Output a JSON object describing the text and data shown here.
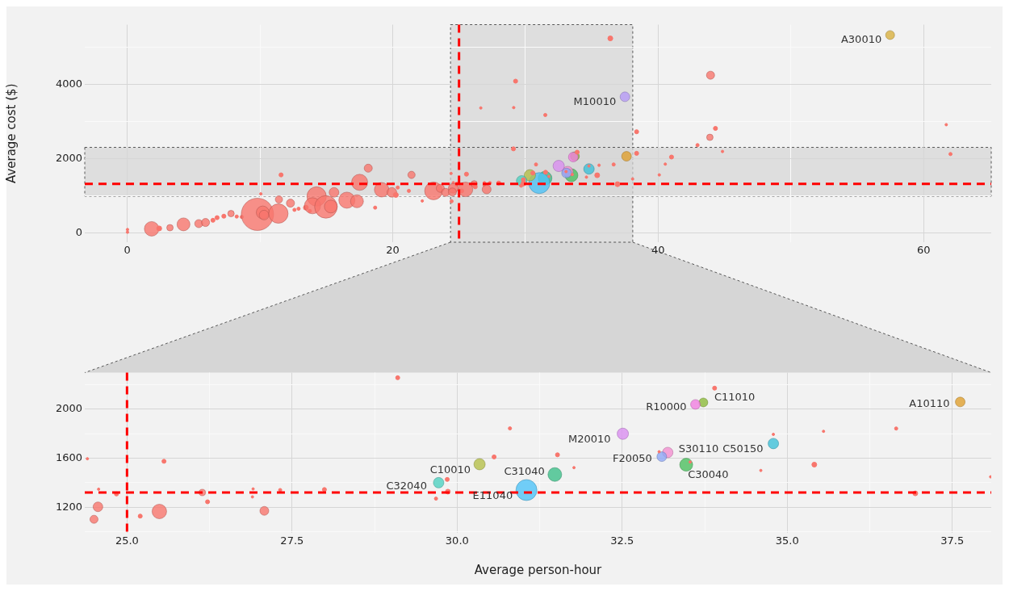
{
  "chart_data": [
    {
      "type": "bubble",
      "ylabel": "Average cost ($)",
      "xlim": [
        -3.2,
        65.1
      ],
      "ylim": [
        -250,
        5600
      ],
      "xticks": [
        0,
        {
          "value": 10,
          "label": null
        },
        20,
        {
          "value": 30,
          "label": null
        },
        40,
        {
          "value": 50,
          "label": null
        },
        60
      ],
      "yticks": [
        0,
        {
          "value": 1000,
          "label": null
        },
        2000,
        {
          "value": 3000,
          "label": null
        },
        4000,
        {
          "value": 5000,
          "label": null
        }
      ],
      "grid": true,
      "legend": false,
      "bands": [
        {
          "axis": "x",
          "from": 24.36,
          "to": 38.09,
          "color": "#d6d6d6"
        },
        {
          "axis": "y",
          "from": 987,
          "to": 2300,
          "color": "#d6d6d6"
        }
      ],
      "ref_lines": [
        {
          "axis": "x",
          "value": 25,
          "color": "#ff0000",
          "line_style": "dashed"
        },
        {
          "axis": "y",
          "value": 1320,
          "color": "#ff0000",
          "line_style": "dashed"
        }
      ],
      "series": [
        {
          "color": "#f8766d",
          "x": [
            0.02,
            0.02,
            1.84,
            2.41,
            3.22,
            4.24,
            5.39,
            5.9,
            6.46,
            6.77,
            7.28,
            7.82,
            8.25,
            8.63,
            9.81,
            10.21,
            10.31,
            11.43,
            11.39,
            11.59,
            10.07,
            12.3,
            12.6,
            12.91,
            13.46,
            13.76,
            14.27,
            13.96,
            14.97,
            15.34,
            15.58,
            16.55,
            17.31,
            17.51,
            18.16,
            18.68,
            19.17,
            19.94,
            20.24,
            20.38,
            21.22,
            21.42,
            22.23,
            23.08,
            23.59,
            23.99,
            24.44,
            29.1,
            30.8,
            30.56,
            29.85,
            29.86,
            29.68,
            24.4,
            25.56,
            24.57,
            24.84,
            24.56,
            24.5,
            25.2,
            25.49,
            26.14,
            26.22,
            26.91,
            26.9,
            27.32,
            27.08,
            27.99,
            33.9,
            31.52,
            31.77,
            33.06,
            33.53,
            34.79,
            34.6,
            35.55,
            35.41,
            36.65,
            36.94,
            38.08,
            36.4,
            29.26,
            26.64,
            29.12,
            31.5,
            38.38,
            38.38,
            40.09,
            40.54,
            41.01,
            42.97,
            43.9,
            44.32,
            44.85,
            43.95,
            61.71,
            62.03
          ],
          "values": [
            90,
            20,
            110,
            120,
            140,
            230,
            250,
            280,
            340,
            410,
            450,
            520,
            440,
            430,
            500,
            550,
            480,
            900,
            520,
            1560,
            1050,
            800,
            620,
            650,
            680,
            590,
            980,
            730,
            700,
            710,
            1090,
            880,
            850,
            1360,
            1740,
            680,
            1160,
            1090,
            1020,
            1220,
            1130,
            1560,
            860,
            1130,
            1200,
            1090,
            850,
            2260,
            1840,
            1610,
            1430,
            1330,
            1270,
            1600,
            1580,
            1350,
            1310,
            1200,
            1100,
            1130,
            1170,
            1320,
            1240,
            1350,
            1280,
            1340,
            1170,
            1340,
            2170,
            1630,
            1520,
            1650,
            1570,
            1800,
            1500,
            1820,
            1550,
            1840,
            1310,
            1450,
            5230,
            4080,
            3360,
            3370,
            3170,
            2720,
            2140,
            1560,
            1850,
            2040,
            2360,
            2570,
            2810,
            2190,
            4240,
            2910,
            2120
          ],
          "sizes": [
            0.006,
            0.006,
            0.203,
            0.023,
            0.04,
            0.16,
            0.063,
            0.063,
            0.016,
            0.016,
            0.016,
            0.04,
            0.01,
            0.01,
            1,
            0.16,
            0.09,
            0.051,
            0.36,
            0.016,
            0.006,
            0.063,
            0.01,
            0.01,
            0.023,
            0.01,
            0.36,
            0.25,
            0.49,
            0.16,
            0.09,
            0.25,
            0.16,
            0.25,
            0.063,
            0.01,
            0.203,
            0.09,
            0.023,
            0.01,
            0.01,
            0.051,
            0.006,
            0.303,
            0.063,
            0.063,
            0.01,
            0.016,
            0.01,
            0.016,
            0.016,
            0.023,
            0.01,
            0.006,
            0.016,
            0.006,
            0.016,
            0.09,
            0.063,
            0.016,
            0.203,
            0.04,
            0.016,
            0.006,
            0.006,
            0.01,
            0.076,
            0.016,
            0.016,
            0.016,
            0.006,
            0.006,
            0.006,
            0.006,
            0.006,
            0.006,
            0.023,
            0.01,
            0.023,
            0.006,
            0.023,
            0.016,
            0.006,
            0.006,
            0.01,
            0.016,
            0.016,
            0.006,
            0.006,
            0.016,
            0.01,
            0.04,
            0.016,
            0.006,
            0.063,
            0.006,
            0.01
          ]
        },
        {
          "name": "M10010",
          "color": "#b59af5",
          "x": [
            37.5
          ],
          "values": [
            3660
          ],
          "sizes": [
            0.09
          ]
        },
        {
          "name": "A30010",
          "color": "#d8b040",
          "x": [
            57.48
          ],
          "values": [
            5320
          ],
          "sizes": [
            0.076
          ]
        },
        {
          "color": "#4fd1c0",
          "x": [
            29.72
          ],
          "values": [
            1400
          ],
          "sizes": [
            0.106
          ]
        },
        {
          "color": "#b5bf4a",
          "x": [
            30.34
          ],
          "values": [
            1550
          ],
          "sizes": [
            0.123
          ]
        },
        {
          "color": "#4fc3f7",
          "x": [
            31.05
          ],
          "values": [
            1340
          ],
          "sizes": [
            0.423
          ]
        },
        {
          "color": "#3dbf8a",
          "x": [
            31.48
          ],
          "values": [
            1470
          ],
          "sizes": [
            0.181
          ]
        },
        {
          "color": "#d98ef0",
          "x": [
            32.51
          ],
          "values": [
            1800
          ],
          "sizes": [
            0.123
          ]
        },
        {
          "color": "#8fa8f5",
          "x": [
            33.1
          ],
          "values": [
            1610
          ],
          "sizes": [
            0.09
          ]
        },
        {
          "color": "#f28fd0",
          "x": [
            33.19
          ],
          "values": [
            1650
          ],
          "sizes": [
            0.106
          ]
        },
        {
          "color": "#4cbf5f",
          "x": [
            33.47
          ],
          "values": [
            1550
          ],
          "sizes": [
            0.16
          ]
        },
        {
          "color": "#f07ee0",
          "x": [
            33.61
          ],
          "values": [
            2040
          ],
          "sizes": [
            0.09
          ]
        },
        {
          "color": "#8cba3a",
          "x": [
            33.73
          ],
          "values": [
            2060
          ],
          "sizes": [
            0.076
          ]
        },
        {
          "color": "#3fc0d8",
          "x": [
            34.79
          ],
          "values": [
            1720
          ],
          "sizes": [
            0.106
          ]
        },
        {
          "color": "#e0a030",
          "x": [
            37.62
          ],
          "values": [
            2060
          ],
          "sizes": [
            0.09
          ]
        }
      ]
    },
    {
      "type": "bubble",
      "xlabel": "Average person-hour",
      "xlim": [
        24.36,
        38.09
      ],
      "ylim": [
        990,
        2300
      ],
      "xticks": [
        {
          "value": 25,
          "label": "25.0"
        },
        {
          "value": 26.25,
          "label": null
        },
        {
          "value": 27.5,
          "label": "27.5"
        },
        {
          "value": 28.75,
          "label": null
        },
        {
          "value": 30,
          "label": "30.0"
        },
        {
          "value": 31.25,
          "label": null
        },
        {
          "value": 32.5,
          "label": "32.5"
        },
        {
          "value": 33.75,
          "label": null
        },
        {
          "value": 35,
          "label": "35.0"
        },
        {
          "value": 36.25,
          "label": null
        },
        {
          "value": 37.5,
          "label": "37.5"
        }
      ],
      "yticks": [
        {
          "value": 1000,
          "label": null
        },
        1200,
        {
          "value": 1400,
          "label": null
        },
        1600,
        {
          "value": 1800,
          "label": null
        },
        2000,
        {
          "value": 2200,
          "label": null
        }
      ],
      "grid": true,
      "legend": false,
      "ref_lines": [
        {
          "axis": "x",
          "value": 25,
          "color": "#ff0000",
          "line_style": "dashed"
        },
        {
          "axis": "y",
          "value": 1320,
          "color": "#ff0000",
          "line_style": "dashed"
        }
      ],
      "series": [
        {
          "color": "#f8766d",
          "x": [
            29.1,
            30.8,
            30.56,
            29.85,
            29.86,
            29.68,
            24.4,
            25.56,
            24.57,
            24.84,
            24.56,
            24.5,
            25.2,
            25.49,
            26.14,
            26.22,
            26.91,
            26.9,
            27.32,
            27.08,
            27.99,
            33.9,
            31.52,
            31.77,
            33.06,
            33.53,
            34.79,
            34.6,
            35.55,
            35.41,
            36.65,
            36.94,
            38.08
          ],
          "values": [
            2258,
            1844,
            1611,
            1427,
            1327,
            1270,
            1596,
            1575,
            1347,
            1308,
            1203,
            1101,
            1127,
            1165,
            1320,
            1244,
            1349,
            1284,
            1340,
            1170,
            1344,
            2173,
            1628,
            1523,
            1653,
            1569,
            1795,
            1500,
            1820,
            1548,
            1843,
            1313,
            1448
          ],
          "sizes": [
            0.037,
            0.024,
            0.037,
            0.037,
            0.053,
            0.024,
            0.013,
            0.037,
            0.013,
            0.037,
            0.213,
            0.148,
            0.037,
            0.479,
            0.095,
            0.037,
            0.013,
            0.013,
            0.024,
            0.179,
            0.037,
            0.037,
            0.037,
            0.013,
            0.013,
            0.013,
            0.013,
            0.013,
            0.013,
            0.053,
            0.024,
            0.053,
            0.013
          ]
        },
        {
          "name": "C32040",
          "color": "#4fd1c0",
          "x": [
            29.72
          ],
          "values": [
            1400
          ],
          "sizes": [
            0.25
          ]
        },
        {
          "name": "C10010",
          "color": "#b5bf4a",
          "x": [
            30.34
          ],
          "values": [
            1551
          ],
          "sizes": [
            0.29
          ]
        },
        {
          "name": "E11040",
          "color": "#4fc3f7",
          "x": [
            31.05
          ],
          "values": [
            1340
          ],
          "sizes": [
            1
          ]
        },
        {
          "name": "C31040",
          "color": "#3dbf8a",
          "x": [
            31.48
          ],
          "values": [
            1467
          ],
          "sizes": [
            0.428
          ]
        },
        {
          "name": "M20010",
          "color": "#d98ef0",
          "x": [
            32.51
          ],
          "values": [
            1800
          ],
          "sizes": [
            0.29
          ]
        },
        {
          "name": "F20050",
          "color": "#8fa8f5",
          "x": [
            33.1
          ],
          "values": [
            1613
          ],
          "sizes": [
            0.213
          ]
        },
        {
          "name": "S30110",
          "color": "#f28fd0",
          "x": [
            33.19
          ],
          "values": [
            1647
          ],
          "sizes": [
            0.25
          ]
        },
        {
          "name": "C30040",
          "color": "#4cbf5f",
          "x": [
            33.47
          ],
          "values": [
            1547
          ],
          "sizes": [
            0.379
          ]
        },
        {
          "name": "R10000",
          "color": "#f07ee0",
          "x": [
            33.61
          ],
          "values": [
            2040
          ],
          "sizes": [
            0.213
          ]
        },
        {
          "name": "C11010",
          "color": "#8cba3a",
          "x": [
            33.73
          ],
          "values": [
            2056
          ],
          "sizes": [
            0.179
          ]
        },
        {
          "name": "C50150",
          "color": "#3fc0d8",
          "x": [
            34.79
          ],
          "values": [
            1720
          ],
          "sizes": [
            0.25
          ]
        },
        {
          "name": "A10110",
          "color": "#e0a030",
          "x": [
            37.62
          ],
          "values": [
            2060
          ],
          "sizes": [
            0.213
          ]
        }
      ]
    }
  ]
}
